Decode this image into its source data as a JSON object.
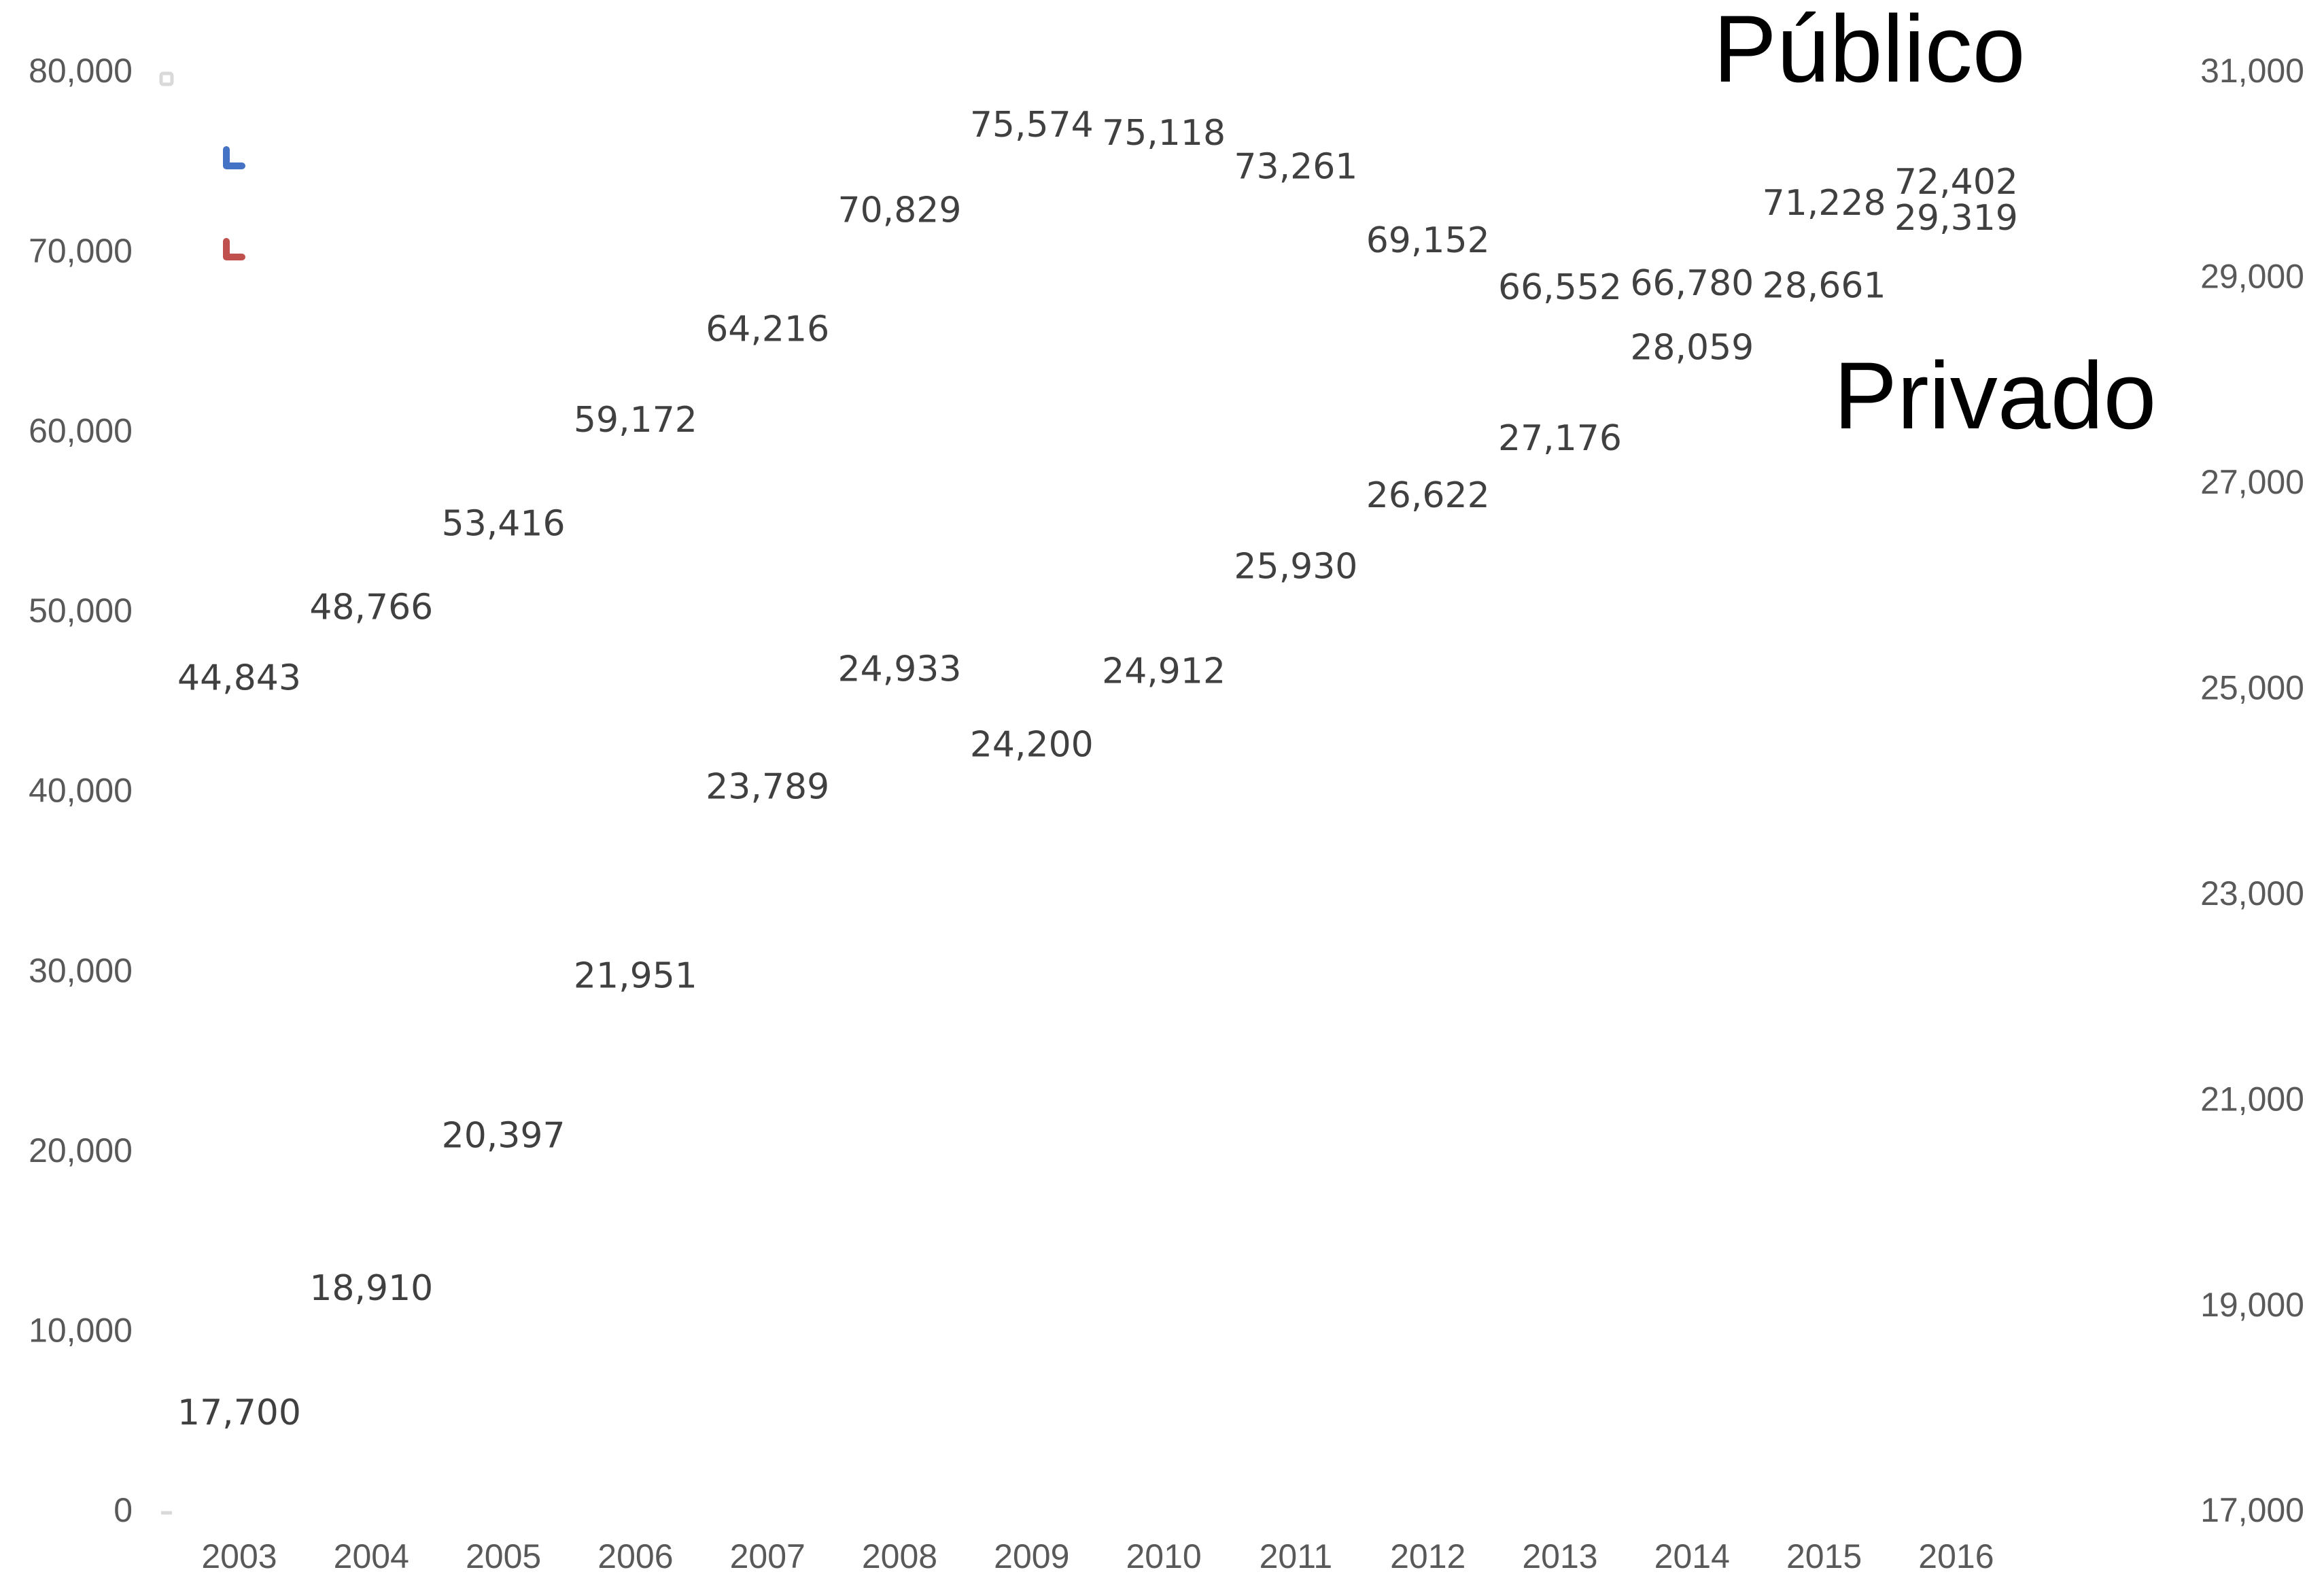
{
  "chart_data": {
    "type": "line",
    "x": [
      "2003",
      "2004",
      "2005",
      "2006",
      "2007",
      "2008",
      "2009",
      "2010",
      "2011",
      "2012",
      "2013",
      "2014",
      "2015",
      "2016"
    ],
    "series": [
      {
        "name": "Público",
        "axis": "left",
        "color": "#4472C4",
        "values": [
          44843,
          48766,
          53416,
          59172,
          64216,
          70829,
          75574,
          75118,
          73261,
          69152,
          66552,
          66780,
          71228,
          72402
        ],
        "labels": [
          "44,843",
          "48,766",
          "53,416",
          "59,172",
          "64,216",
          "70,829",
          "75,574",
          "75,118",
          "73,261",
          "69,152",
          "66,552",
          "66,780",
          "71,228",
          "72,402"
        ]
      },
      {
        "name": "Privado",
        "axis": "right",
        "color": "#C0504D",
        "values": [
          17700,
          18910,
          20397,
          21951,
          23789,
          24933,
          24200,
          24912,
          25930,
          26622,
          27176,
          28059,
          28661,
          29319
        ],
        "labels": [
          "17,700",
          "18,910",
          "20,397",
          "21,951",
          "23,789",
          "24,933",
          "24,200",
          "24,912",
          "25,930",
          "26,622",
          "27,176",
          "28,059",
          "28,661",
          "29,319"
        ]
      }
    ],
    "left_axis": {
      "ylim": [
        0,
        80000
      ],
      "ticks": [
        0,
        10000,
        20000,
        30000,
        40000,
        50000,
        60000,
        70000,
        80000
      ],
      "tick_labels": [
        "0",
        "10,000",
        "20,000",
        "30,000",
        "40,000",
        "50,000",
        "60,000",
        "70,000",
        "80,000"
      ]
    },
    "right_axis": {
      "ylim": [
        17000,
        31000
      ],
      "ticks": [
        17000,
        19000,
        21000,
        23000,
        25000,
        27000,
        29000,
        31000
      ],
      "tick_labels": [
        "17,000",
        "19,000",
        "21,000",
        "23,000",
        "25,000",
        "27,000",
        "29,000",
        "31,000"
      ]
    },
    "annotations": [
      "Público",
      "Privado"
    ],
    "grid": false,
    "legend": "none"
  }
}
